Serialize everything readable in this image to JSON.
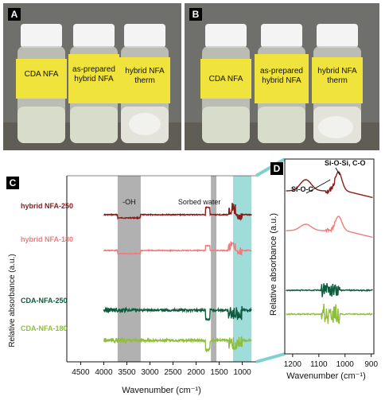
{
  "photos": [
    {
      "tag": "A",
      "vials": [
        "CDA NFA",
        "as-prepared hybrid NFA",
        "hybrid NFA therm"
      ]
    },
    {
      "tag": "B",
      "vials": [
        "CDA NFA",
        "as-prepared hybrid NFA",
        "hybrid NFA therm"
      ]
    }
  ],
  "chart_data": [
    {
      "panel": "C",
      "type": "line",
      "xlabel": "Wavenumber (cm⁻¹)",
      "ylabel": "Relative absorbance (a.u.)",
      "xlim": [
        4800,
        700
      ],
      "xticks": [
        4500,
        4000,
        3500,
        3000,
        2500,
        2000,
        1500,
        1000
      ],
      "series": [
        {
          "name": "hybrid NFA-250",
          "color": "#8b1a1a",
          "offset": 4.0
        },
        {
          "name": "hybrid NFA-180",
          "color": "#f07b7b",
          "offset": 3.0
        },
        {
          "name": "CDA-NFA-250",
          "color": "#0e5a3c",
          "offset": 1.7
        },
        {
          "name": "CDA-NFA-180",
          "color": "#8fbe3a",
          "offset": 1.0
        }
      ],
      "annotations": [
        {
          "text": "-OH",
          "range": [
            3700,
            3200
          ],
          "color": "#9e9e9e"
        },
        {
          "text": "Sorbed water",
          "range": [
            1680,
            1560
          ],
          "color": "#9e9e9e"
        },
        {
          "text": "",
          "range": [
            1200,
            800
          ],
          "color": "#7fd1cf"
        }
      ]
    },
    {
      "panel": "D",
      "type": "line",
      "xlabel": "Wavenumber (cm⁻¹)",
      "ylabel": "Relative absorbance (a.u.)",
      "xlim": [
        1230,
        890
      ],
      "xticks": [
        1200,
        1100,
        1000,
        900
      ],
      "series": [
        {
          "name": "hybrid NFA-250",
          "color": "#8b1a1a"
        },
        {
          "name": "hybrid NFA-180",
          "color": "#f07b7b"
        },
        {
          "name": "CDA-NFA-250",
          "color": "#0e5a3c"
        },
        {
          "name": "CDA-NFA-180",
          "color": "#8fbe3a"
        }
      ],
      "annotations": [
        {
          "text": "Si-O-C",
          "x": 1050
        },
        {
          "text": "Si-O-Si, C-O",
          "x": 1020
        }
      ]
    }
  ]
}
